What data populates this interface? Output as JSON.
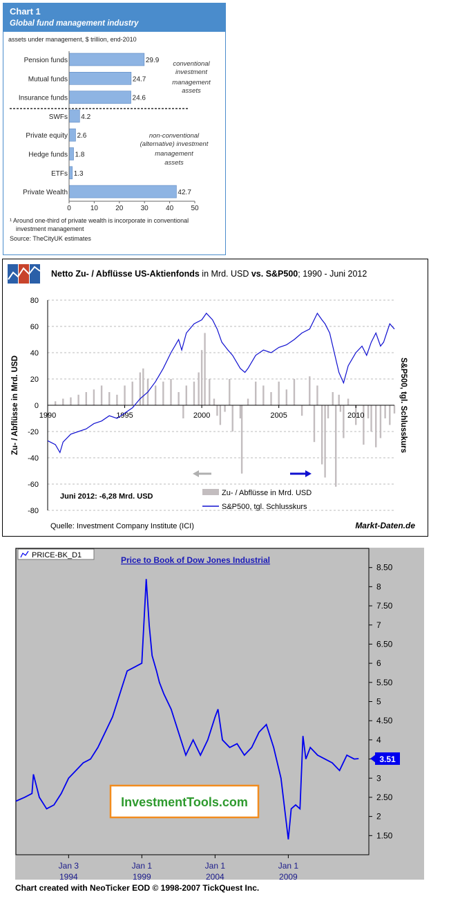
{
  "chart_data": [
    {
      "type": "bar",
      "orientation": "horizontal",
      "title": "Chart 1",
      "subtitle": "Global fund management industry",
      "units_label": "assets under management, $ trillion, end-2010",
      "categories": [
        "Pension funds",
        "Mutual funds",
        "Insurance funds",
        "SWFs",
        "Private equity",
        "Hedge funds",
        "ETFs",
        "Private Wealth"
      ],
      "values": [
        29.9,
        24.7,
        24.6,
        4.2,
        2.6,
        1.8,
        1.3,
        42.7
      ],
      "value_labels": [
        "29.9",
        "24.7",
        "24.6",
        "4.2",
        "2.6",
        "1.8",
        "1.3",
        "42.7"
      ],
      "xlim": [
        0,
        50
      ],
      "xticks": [
        "0",
        "10",
        "20",
        "30",
        "40",
        "50"
      ],
      "annotations": {
        "conventional": [
          "conventional",
          "investment",
          "management",
          "assets"
        ],
        "nonconventional": [
          "non-conventional",
          "(alternative) investment",
          "management",
          "assets"
        ]
      },
      "footnote_lines": [
        "¹ Around one-third of private wealth is incorporate in conventional",
        "investment management"
      ],
      "source": "Source: TheCityUK estimates",
      "colors": {
        "header": "#4a8ccc",
        "bar": "#8eb4e3",
        "bar_edge": "#5b87c2"
      }
    },
    {
      "type": "bar_line_combo",
      "title_bold_1": "Netto Zu- / Abflüsse US-Aktienfonds",
      "title_normal_1": " in Mrd. USD ",
      "title_bold_2": "vs. S&P500",
      "title_normal_2": "; 1990 - Juni 2012",
      "ylabel_left": "Zu- / Abflüsse in Mrd. USD",
      "ylabel_right": "S&P500, tgl. Schlusskurs",
      "ylim": [
        -80,
        80
      ],
      "yticks": [
        "80",
        "60",
        "40",
        "20",
        "0",
        "-20",
        "-40",
        "-60",
        "-80"
      ],
      "xlim": [
        1990,
        2012.5
      ],
      "xticks": [
        "1990",
        "1995",
        "2000",
        "2005",
        "2010"
      ],
      "annotation": "Juni 2012: -6,28 Mrd. USD",
      "legend": [
        "Zu- / Abflüsse in Mrd. USD",
        "S&P500, tgl. Schlusskurs"
      ],
      "source": "Quelle: Investment Company Institute (ICI)",
      "brand": "Markt-Daten.de",
      "series": [
        {
          "name": "Zu- / Abflüsse in Mrd. USD",
          "kind": "bar",
          "color": "#c3bdbf",
          "x": [
            1990.5,
            1991,
            1991.5,
            1992,
            1992.5,
            1993,
            1993.5,
            1994,
            1994.5,
            1995,
            1995.5,
            1996,
            1996.2,
            1996.5,
            1997,
            1997.5,
            1998,
            1998.5,
            1998.8,
            1999,
            1999.5,
            1999.8,
            2000,
            2000.2,
            2000.5,
            2000.8,
            2001,
            2001.2,
            2001.5,
            2001.8,
            2002,
            2002.5,
            2002.6,
            2003,
            2003.5,
            2004,
            2004.5,
            2005,
            2005.5,
            2006,
            2006.5,
            2007,
            2007.3,
            2007.5,
            2007.8,
            2008,
            2008.2,
            2008.5,
            2008.7,
            2008.9,
            2009,
            2009.2,
            2009.5,
            2010,
            2010.5,
            2010.8,
            2011,
            2011.3,
            2011.6,
            2011.9,
            2012.2,
            2012.5
          ],
          "values": [
            3,
            5,
            6,
            8,
            10,
            12,
            15,
            10,
            8,
            15,
            18,
            25,
            28,
            20,
            15,
            18,
            20,
            10,
            -10,
            15,
            18,
            25,
            42,
            55,
            20,
            5,
            -8,
            -15,
            -5,
            20,
            -20,
            -10,
            -52,
            5,
            18,
            15,
            10,
            18,
            12,
            20,
            -8,
            22,
            -28,
            15,
            -45,
            -55,
            -10,
            10,
            -62,
            8,
            -5,
            -25,
            5,
            -15,
            -30,
            -10,
            -20,
            -32,
            -25,
            -10,
            -15,
            -6.28
          ]
        },
        {
          "name": "S&P500, tgl. Schlusskurs",
          "kind": "line",
          "color": "#1010d0",
          "x": [
            1990,
            1990.5,
            1990.8,
            1991,
            1991.5,
            1992,
            1992.5,
            1993,
            1993.5,
            1994,
            1994.5,
            1995,
            1995.5,
            1996,
            1996.5,
            1997,
            1997.5,
            1998,
            1998.5,
            1998.7,
            1999,
            1999.5,
            2000,
            2000.3,
            2000.7,
            2001,
            2001.3,
            2001.7,
            2002,
            2002.5,
            2002.8,
            2003,
            2003.5,
            2004,
            2004.5,
            2005,
            2005.5,
            2006,
            2006.5,
            2007,
            2007.5,
            2007.8,
            2008,
            2008.3,
            2008.7,
            2008.9,
            2009.2,
            2009.5,
            2010,
            2010.4,
            2010.7,
            2011,
            2011.3,
            2011.6,
            2011.8,
            2012,
            2012.2,
            2012.5
          ],
          "values": [
            -27,
            -30,
            -36,
            -28,
            -22,
            -20,
            -18,
            -14,
            -12,
            -8,
            -10,
            -6,
            -2,
            5,
            10,
            18,
            28,
            40,
            50,
            42,
            55,
            62,
            65,
            70,
            65,
            58,
            48,
            42,
            38,
            28,
            25,
            28,
            38,
            42,
            40,
            44,
            46,
            50,
            55,
            58,
            70,
            65,
            62,
            55,
            35,
            25,
            17,
            30,
            40,
            45,
            38,
            48,
            55,
            45,
            48,
            55,
            62,
            58
          ]
        }
      ]
    },
    {
      "type": "line",
      "legend_label": "PRICE-BK_D1",
      "title": "Price to Book of Dow Jones Industrial",
      "ylim": [
        1,
        9
      ],
      "yticks": [
        "8.50",
        "8",
        "7.50",
        "7",
        "6.50",
        "6",
        "5.50",
        "5",
        "4.50",
        "4",
        "3.50",
        "3",
        "2.50",
        "2",
        "1.50"
      ],
      "xlim": [
        1990.4,
        2014.5
      ],
      "xticks": [
        {
          "line1": "Jan 3",
          "line2": "1994"
        },
        {
          "line1": "Jan 1",
          "line2": "1999"
        },
        {
          "line1": "Jan 1",
          "line2": "2004"
        },
        {
          "line1": "Jan 1",
          "line2": "2009"
        }
      ],
      "last_value": "3.51",
      "watermark": "InvestmentTools.com",
      "credit": "Chart created with NeoTicker EOD © 1998-2007 TickQuest Inc.",
      "series": [
        {
          "name": "PRICE-BK_D1",
          "color": "#0000ee",
          "x": [
            1990.4,
            1991,
            1991.5,
            1991.6,
            1992,
            1992.5,
            1993,
            1993.5,
            1994,
            1994.5,
            1995,
            1995.5,
            1996,
            1996.5,
            1997,
            1997.5,
            1998,
            1998.5,
            1999,
            1999.3,
            1999.5,
            1999.7,
            2000,
            2000.2,
            2000.5,
            2001,
            2001.5,
            2002,
            2002.5,
            2003,
            2003.5,
            2004,
            2004.2,
            2004.5,
            2005,
            2005.5,
            2006,
            2006.5,
            2007,
            2007.5,
            2008,
            2008.5,
            2009,
            2009.2,
            2009.5,
            2009.8,
            2010,
            2010.2,
            2010.5,
            2011,
            2011.5,
            2012,
            2012.5,
            2013,
            2013.5,
            2013.8
          ],
          "values": [
            2.4,
            2.5,
            2.6,
            3.1,
            2.5,
            2.2,
            2.3,
            2.6,
            3.0,
            3.2,
            3.4,
            3.5,
            3.8,
            4.2,
            4.6,
            5.2,
            5.8,
            5.9,
            6.0,
            8.2,
            7.0,
            6.2,
            5.8,
            5.5,
            5.2,
            4.8,
            4.2,
            3.6,
            4.0,
            3.6,
            4.0,
            4.6,
            4.8,
            4.0,
            3.8,
            3.9,
            3.6,
            3.8,
            4.2,
            4.4,
            3.8,
            3.0,
            1.4,
            2.2,
            2.3,
            2.2,
            4.1,
            3.5,
            3.8,
            3.6,
            3.5,
            3.4,
            3.2,
            3.6,
            3.5,
            3.51
          ]
        }
      ]
    }
  ]
}
